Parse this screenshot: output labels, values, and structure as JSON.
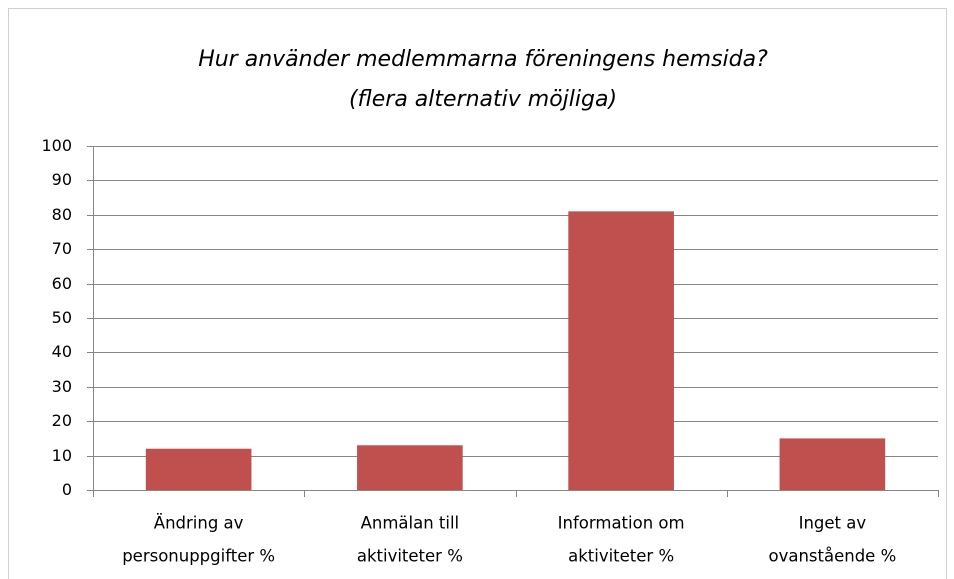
{
  "chart_data": {
    "type": "bar",
    "title": "Hur använder medlemmarna föreningens hemsida?",
    "subtitle": "(flera alternativ möjliga)",
    "categories": [
      [
        "Ändring av",
        "personuppgifter  %"
      ],
      [
        "Anmälan till",
        "aktiviteter %"
      ],
      [
        "Information om",
        "aktiviteter %"
      ],
      [
        "Inget av",
        "ovanstående %"
      ]
    ],
    "values": [
      12,
      13,
      81,
      15
    ],
    "color": "#c0504d",
    "ylim": [
      0,
      100
    ],
    "yticks": [
      0,
      10,
      20,
      30,
      40,
      50,
      60,
      70,
      80,
      90,
      100
    ],
    "grid": true
  }
}
